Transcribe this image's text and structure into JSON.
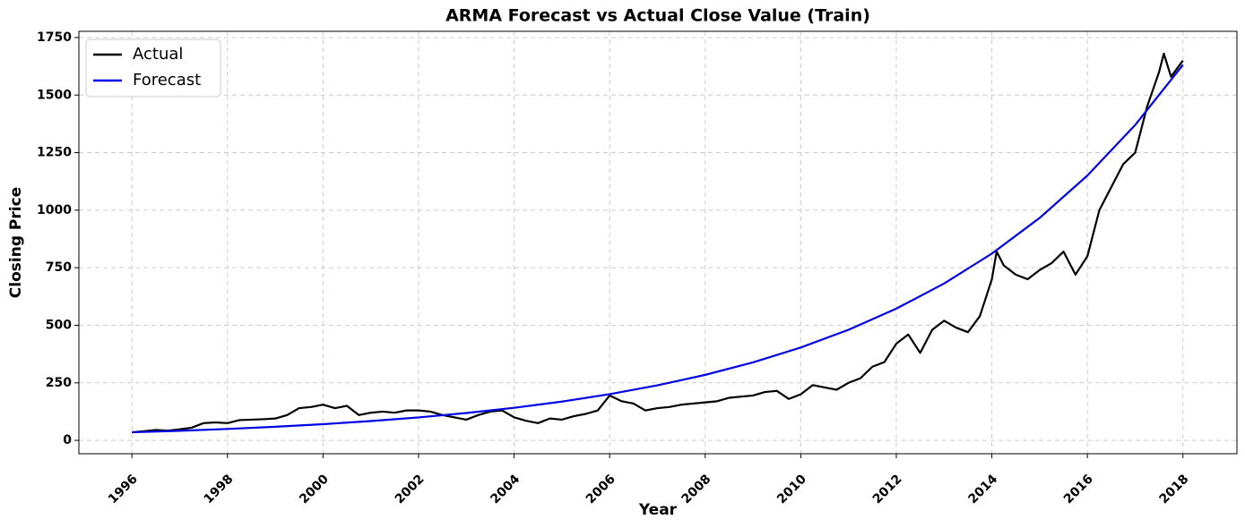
{
  "chart_data": {
    "type": "line",
    "title": "ARMA Forecast vs Actual Close Value (Train)",
    "xlabel": "Year",
    "ylabel": "Closing Price",
    "xlim": [
      1994.89,
      2019.13
    ],
    "xticks": [
      1996,
      1998,
      2000,
      2002,
      2004,
      2006,
      2008,
      2010,
      2012,
      2014,
      2016,
      2018
    ],
    "ylim": [
      -58,
      1777
    ],
    "yticks": [
      0,
      250,
      500,
      750,
      1000,
      1250,
      1500,
      1750
    ],
    "grid": true,
    "legend": "upper left",
    "series": [
      {
        "name": "Actual",
        "color": "#000000",
        "x": [
          1996,
          1996.25,
          1996.5,
          1996.75,
          1997,
          1997.25,
          1997.5,
          1997.75,
          1998,
          1998.25,
          1998.5,
          1998.75,
          1999,
          1999.25,
          1999.5,
          1999.75,
          2000,
          2000.25,
          2000.5,
          2000.75,
          2001,
          2001.25,
          2001.5,
          2001.75,
          2002,
          2002.25,
          2002.5,
          2002.75,
          2003,
          2003.25,
          2003.5,
          2003.75,
          2004,
          2004.25,
          2004.5,
          2004.75,
          2005,
          2005.25,
          2005.5,
          2005.75,
          2006,
          2006.25,
          2006.5,
          2006.75,
          2007,
          2007.25,
          2007.5,
          2007.75,
          2008,
          2008.25,
          2008.5,
          2008.75,
          2009,
          2009.25,
          2009.5,
          2009.75,
          2010,
          2010.25,
          2010.5,
          2010.75,
          2011,
          2011.25,
          2011.5,
          2011.75,
          2012,
          2012.25,
          2012.5,
          2012.75,
          2013,
          2013.25,
          2013.5,
          2013.75,
          2014,
          2014.1,
          2014.25,
          2014.5,
          2014.75,
          2015,
          2015.25,
          2015.5,
          2015.75,
          2016,
          2016.25,
          2016.5,
          2016.75,
          2017,
          2017.25,
          2017.5,
          2017.6,
          2017.75,
          2018
        ],
        "values": [
          35,
          40,
          45,
          42,
          48,
          55,
          75,
          78,
          75,
          88,
          90,
          92,
          95,
          110,
          140,
          145,
          155,
          140,
          150,
          110,
          120,
          125,
          120,
          130,
          130,
          125,
          110,
          100,
          90,
          110,
          125,
          130,
          100,
          85,
          75,
          95,
          90,
          105,
          115,
          130,
          195,
          170,
          160,
          130,
          140,
          145,
          155,
          160,
          165,
          170,
          185,
          190,
          195,
          210,
          215,
          180,
          200,
          240,
          230,
          220,
          250,
          270,
          320,
          340,
          420,
          460,
          380,
          480,
          520,
          490,
          470,
          540,
          700,
          820,
          760,
          720,
          700,
          740,
          770,
          820,
          720,
          800,
          1000,
          1100,
          1200,
          1250,
          1450,
          1600,
          1680,
          1580,
          1650
        ]
      },
      {
        "name": "Forecast",
        "color": "#0000e6",
        "x": [
          1996,
          1997,
          1998,
          1999,
          2000,
          2001,
          2002,
          2003,
          2004,
          2005,
          2006,
          2007,
          2008,
          2009,
          2010,
          2011,
          2012,
          2013,
          2014,
          2015,
          2016,
          2017,
          2018
        ],
        "values": [
          35,
          41.7,
          49.6,
          59.1,
          70.4,
          83.8,
          99.8,
          118.8,
          141.5,
          168.5,
          200.7,
          239,
          284.6,
          338.9,
          403.5,
          480.5,
          572.2,
          681.4,
          811.4,
          966.2,
          1150.6,
          1370.1,
          1631.5
        ]
      }
    ]
  }
}
